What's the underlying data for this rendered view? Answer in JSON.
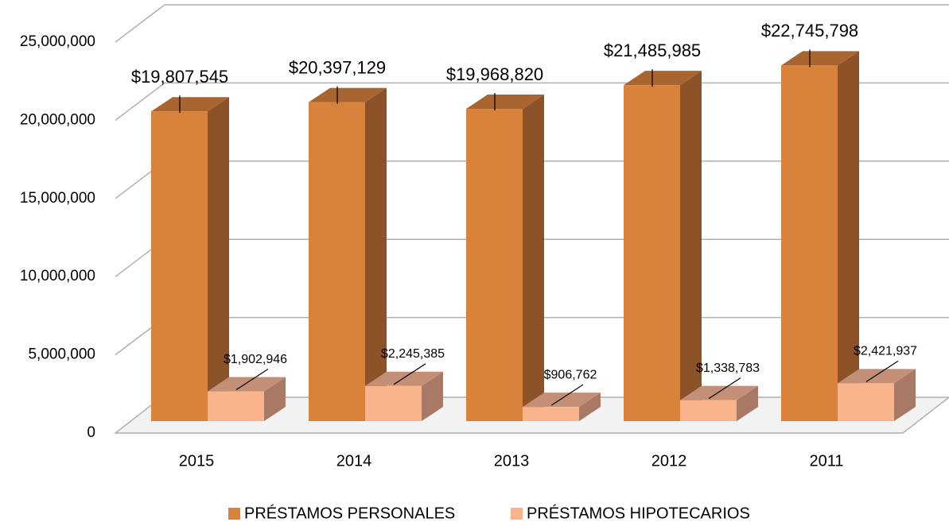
{
  "chart_data": {
    "type": "bar3d",
    "categories": [
      "2015",
      "2014",
      "2013",
      "2012",
      "2011"
    ],
    "series": [
      {
        "name": "PRÉSTAMOS PERSONALES",
        "color": "#d9823b",
        "values": [
          19807545,
          20397129,
          19968820,
          21485985,
          22745798
        ],
        "value_labels": [
          "$19,807,545",
          "$20,397,129",
          "$19,968,820",
          "$21,485,985",
          "$22,745,798"
        ]
      },
      {
        "name": "PRÉSTAMOS HIPOTECARIOS",
        "color": "#f9b48c",
        "values": [
          1902946,
          2245385,
          906762,
          1338783,
          2421937
        ],
        "value_labels": [
          "$1,902,946",
          "$2,245,385",
          "$906,762",
          "$1,338,783",
          "$2,421,937"
        ]
      }
    ],
    "ylim": [
      0,
      25000000
    ],
    "yticks": [
      0,
      {
        "value": 5000000,
        "label": "5,000,000"
      },
      {
        "value": 10000000,
        "label": "10,000,000"
      },
      {
        "value": 15000000,
        "label": "15,000,000"
      },
      {
        "value": 20000000,
        "label": "20,000,000"
      },
      {
        "value": 25000000,
        "label": "25,000,000"
      }
    ],
    "grid": true,
    "legend": "bottom"
  }
}
